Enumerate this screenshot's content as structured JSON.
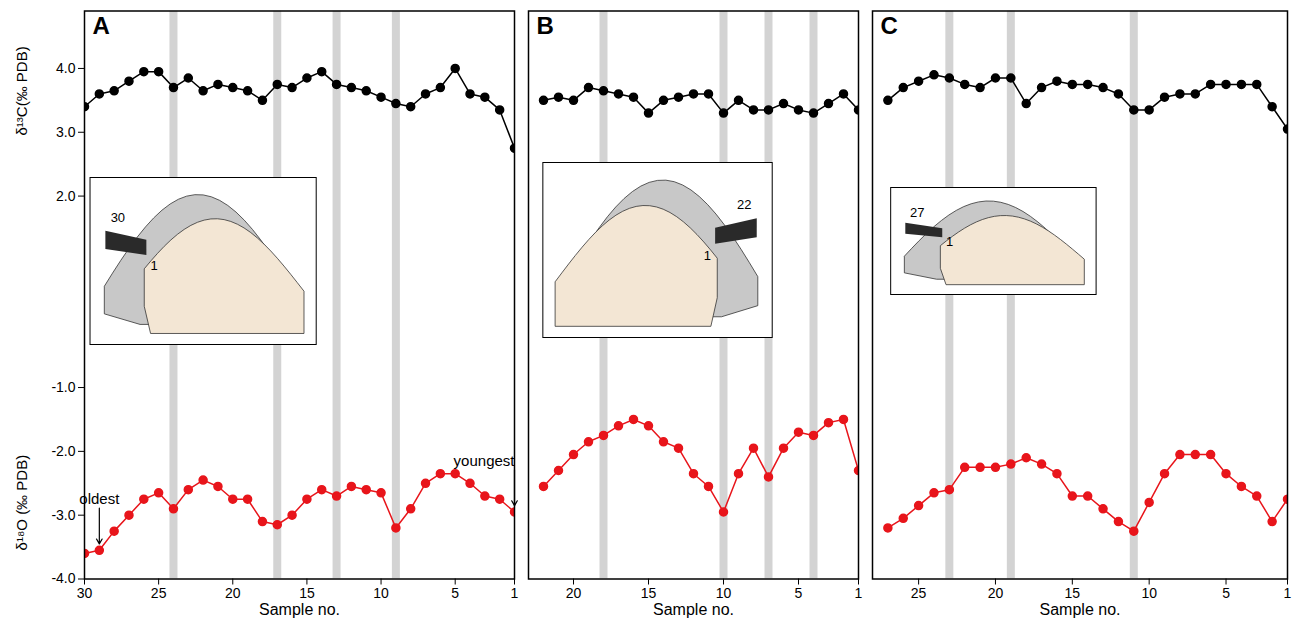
{
  "chart_data": [
    {
      "type": "line",
      "title": "A",
      "x": [
        30,
        29,
        28,
        27,
        26,
        25,
        24,
        23,
        22,
        21,
        20,
        19,
        18,
        17,
        16,
        15,
        14,
        13,
        12,
        11,
        10,
        9,
        8,
        7,
        6,
        5,
        4,
        3,
        2,
        1
      ],
      "xlabel": "Sample no.",
      "xlim": [
        30,
        1
      ],
      "xticks": [
        30,
        25,
        20,
        15,
        10,
        5,
        1
      ],
      "ylim": [
        -4.0,
        4.9
      ],
      "yticks": [
        {
          "value": 4,
          "label": "4.0"
        },
        {
          "value": 3,
          "label": "3.0"
        },
        {
          "value": 2,
          "label": "2.0"
        },
        {
          "value": -1,
          "label": "-1.0"
        },
        {
          "value": -2,
          "label": "-2.0"
        },
        {
          "value": -3,
          "label": "-3.0"
        },
        {
          "value": -4,
          "label": "-4.0"
        }
      ],
      "shaded_samples": [
        24,
        17,
        13,
        9
      ],
      "series": [
        {
          "name": "δ¹³C(‰ PDB)",
          "color": "#000000",
          "marker": "circle",
          "values": [
            3.4,
            3.6,
            3.65,
            3.8,
            3.95,
            3.95,
            3.7,
            3.85,
            3.65,
            3.75,
            3.7,
            3.65,
            3.5,
            3.75,
            3.7,
            3.85,
            3.95,
            3.75,
            3.7,
            3.65,
            3.55,
            3.45,
            3.4,
            3.6,
            3.7,
            4.0,
            3.6,
            3.55,
            3.35,
            2.75
          ]
        },
        {
          "name": "δ¹⁸O (‰ PDB)",
          "color": "#e8151b",
          "marker": "circle",
          "values": [
            -3.6,
            -3.55,
            -3.25,
            -3.0,
            -2.75,
            -2.65,
            -2.9,
            -2.6,
            -2.45,
            -2.55,
            -2.75,
            -2.75,
            -3.1,
            -3.15,
            -3.0,
            -2.75,
            -2.6,
            -2.7,
            -2.55,
            -2.6,
            -2.65,
            -3.2,
            -2.9,
            -2.5,
            -2.35,
            -2.35,
            -2.5,
            -2.7,
            -2.75,
            -2.95
          ]
        }
      ],
      "annotations": [
        {
          "text": "oldest",
          "x": 29,
          "y": -3.55
        },
        {
          "text": "youngest",
          "x": 1,
          "y": -2.95
        }
      ],
      "inset_labels": {
        "outer": "30",
        "inner": "1"
      }
    },
    {
      "type": "line",
      "title": "B",
      "x": [
        22,
        21,
        20,
        19,
        18,
        17,
        16,
        15,
        14,
        13,
        12,
        11,
        10,
        9,
        8,
        7,
        6,
        5,
        4,
        3,
        2,
        1
      ],
      "xlabel": "Sample no.",
      "xlim": [
        23,
        1
      ],
      "xticks": [
        20,
        15,
        10,
        5,
        1
      ],
      "ylim": [
        -4.0,
        4.9
      ],
      "tick_labels": "x",
      "shaded_samples": [
        18,
        10,
        7,
        4
      ],
      "series": [
        {
          "color": "#000000",
          "marker": "circle",
          "values": [
            3.5,
            3.55,
            3.5,
            3.7,
            3.65,
            3.6,
            3.55,
            3.3,
            3.5,
            3.55,
            3.6,
            3.6,
            3.3,
            3.5,
            3.35,
            3.35,
            3.45,
            3.35,
            3.3,
            3.45,
            3.6,
            3.35
          ]
        },
        {
          "color": "#e8151b",
          "marker": "circle",
          "values": [
            -2.55,
            -2.3,
            -2.05,
            -1.85,
            -1.75,
            -1.6,
            -1.5,
            -1.6,
            -1.85,
            -1.95,
            -2.35,
            -2.55,
            -2.95,
            -2.35,
            -1.95,
            -2.4,
            -1.95,
            -1.7,
            -1.75,
            -1.55,
            -1.5,
            -2.3
          ]
        }
      ],
      "inset_labels": {
        "outer": "22",
        "inner": "1"
      }
    },
    {
      "type": "line",
      "title": "C",
      "x": [
        27,
        26,
        25,
        24,
        23,
        22,
        21,
        20,
        19,
        18,
        17,
        16,
        15,
        14,
        13,
        12,
        11,
        10,
        9,
        8,
        7,
        6,
        5,
        4,
        3,
        2,
        1
      ],
      "xlabel": "Sample no.",
      "xlim": [
        28,
        1
      ],
      "xticks": [
        25,
        20,
        15,
        10,
        5,
        1
      ],
      "ylim": [
        -4.0,
        4.9
      ],
      "tick_labels": "x",
      "shaded_samples": [
        23,
        19,
        11
      ],
      "series": [
        {
          "color": "#000000",
          "marker": "circle",
          "values": [
            3.5,
            3.7,
            3.8,
            3.9,
            3.85,
            3.75,
            3.7,
            3.85,
            3.85,
            3.45,
            3.7,
            3.8,
            3.75,
            3.75,
            3.7,
            3.6,
            3.35,
            3.35,
            3.55,
            3.6,
            3.6,
            3.75,
            3.75,
            3.75,
            3.75,
            3.4,
            3.05
          ]
        },
        {
          "color": "#e8151b",
          "marker": "circle",
          "values": [
            -3.2,
            -3.05,
            -2.85,
            -2.65,
            -2.6,
            -2.25,
            -2.25,
            -2.25,
            -2.2,
            -2.1,
            -2.2,
            -2.35,
            -2.7,
            -2.7,
            -2.9,
            -3.1,
            -3.25,
            -2.8,
            -2.35,
            -2.05,
            -2.05,
            -2.05,
            -2.35,
            -2.55,
            -2.7,
            -3.1,
            -2.75
          ]
        }
      ],
      "inset_labels": {
        "outer": "27",
        "inner": "1"
      }
    }
  ]
}
